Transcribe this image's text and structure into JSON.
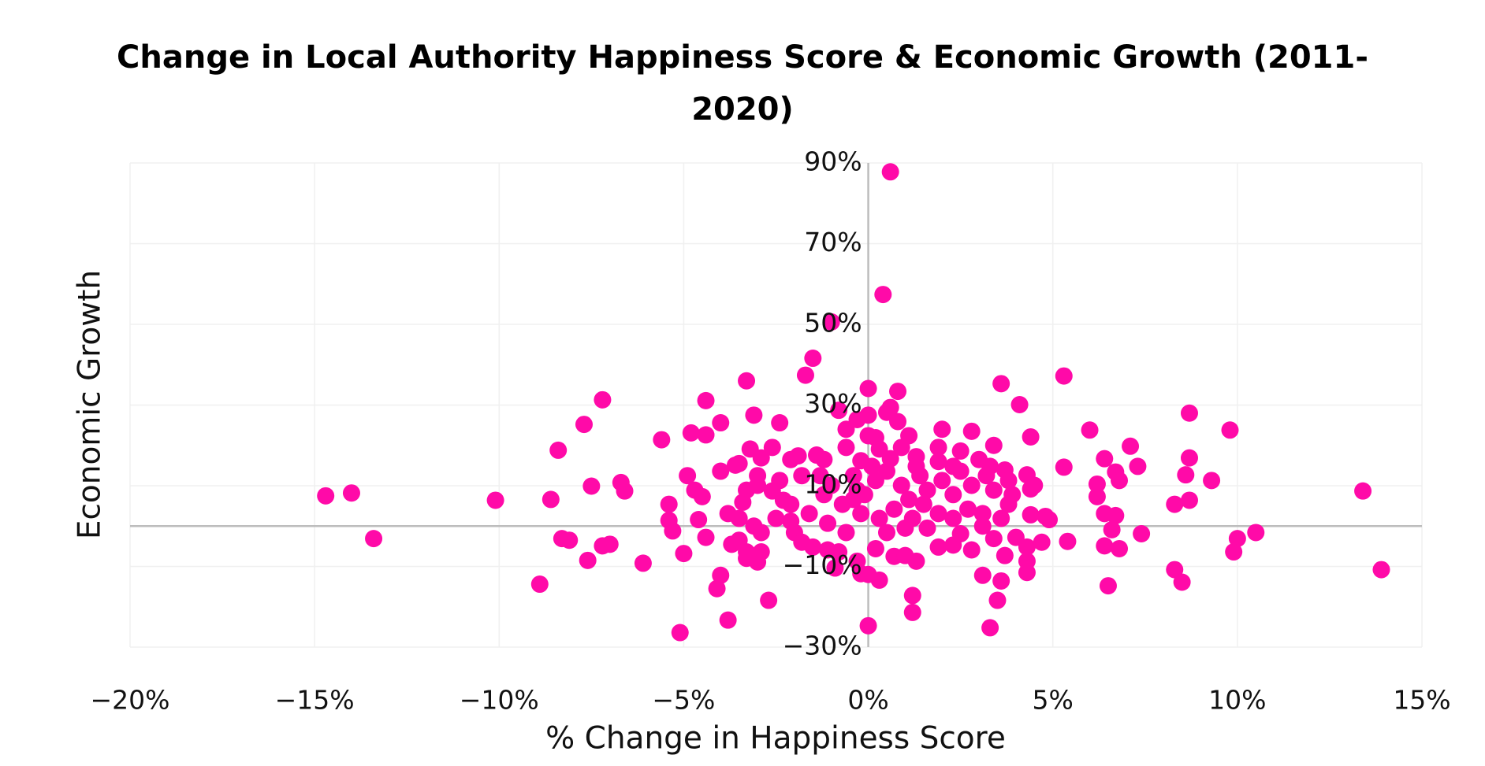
{
  "chart_data": {
    "type": "scatter",
    "title": "Change in Local Authority Happiness Score & Economic Growth (2011-2020)",
    "x_label": "% Change in Happiness Score",
    "y_label": "Economic Growth",
    "color": "#ff0aa8",
    "grid": true,
    "xlim": [
      -20,
      15
    ],
    "ylim": [
      -30,
      90
    ],
    "xticks": [
      {
        "value": -20,
        "label": "−20%"
      },
      {
        "value": -15,
        "label": "−15%"
      },
      {
        "value": -10,
        "label": "−10%"
      },
      {
        "value": -5,
        "label": "−5%"
      },
      {
        "value": 0,
        "label": "0%"
      },
      {
        "value": 5,
        "label": "5%"
      },
      {
        "value": 10,
        "label": "10%"
      },
      {
        "value": 15,
        "label": "15%"
      }
    ],
    "yticks": [
      {
        "value": -30,
        "label": "−30%"
      },
      {
        "value": -10,
        "label": "−10%"
      },
      {
        "value": 10,
        "label": "10%"
      },
      {
        "value": 30,
        "label": "30%"
      },
      {
        "value": 50,
        "label": "50%"
      },
      {
        "value": 70,
        "label": "70%"
      },
      {
        "value": 90,
        "label": "90%"
      }
    ],
    "x": [
      0.6,
      0.4,
      -1.0,
      -1.5,
      -1.7,
      -3.3,
      0.0,
      0.8,
      3.6,
      5.3,
      -7.2,
      -4.4,
      -0.8,
      4.1,
      8.7,
      0.6,
      0.5,
      0,
      -3.1,
      -7.7,
      -4.0,
      -2.4,
      -0.3,
      0.8,
      6.0,
      9.8,
      2.0,
      2.8,
      -4.8,
      -4.4,
      1.1,
      0,
      4.4,
      -5.6,
      -8.4,
      7.1,
      -3.2,
      -2.6,
      3.4,
      -0.6,
      0.3,
      1.9,
      2.5,
      6.4,
      8.7,
      -1.9,
      -1.4,
      -1.2,
      -2.1,
      -0.2,
      0.6,
      1.3,
      3.0,
      7.3,
      5.3,
      3.7,
      6.7,
      8.6,
      9.3,
      -4.0,
      -3.6,
      -3.5,
      -2.9,
      -3.0,
      -4.9,
      -6.7,
      -6.6,
      -7.5,
      -4.7,
      -4.5,
      4.3,
      4.5,
      4.4,
      6.2,
      6.8,
      6.2,
      8.3,
      8.7,
      13.4,
      -14.7,
      -14.0,
      -13.4,
      -10.1,
      -8.6,
      -5.4,
      -5.4,
      -5.3,
      -8.3,
      -8.1,
      -7.2,
      -7.0,
      -7.6,
      -6.1,
      -5.0,
      -8.9,
      -4.0,
      -4.1,
      -3.8,
      -5.1,
      -2.7,
      -4.4,
      -3.7,
      -3.5,
      -3.8,
      -4.6,
      -3.3,
      -2.9,
      -3.0,
      -3.3,
      -3.1,
      -3.4,
      -3.3,
      -3.0,
      -2.6,
      -2.3,
      -2.1,
      -2.0,
      -1.8,
      -1.5,
      -1.1,
      -0.8,
      -0.9,
      -0.3,
      -0.2,
      0,
      0.3,
      0,
      1.2,
      1.2,
      0.7,
      1.0,
      1.3,
      0.2,
      1.9,
      2.3,
      2.8,
      2.5,
      3.1,
      3.4,
      3.7,
      3.1,
      3.6,
      3.5,
      3.3,
      4.3,
      4.3,
      4.3,
      4.0,
      4.7,
      4.4,
      4.8,
      4.9,
      5.4,
      3.8,
      3.9,
      6.4,
      6.7,
      6.6,
      6.4,
      6.8,
      7.4,
      6.5,
      8.3,
      8.5,
      10.0,
      9.9,
      10.5,
      13.9,
      -0.4,
      -0.3,
      -0.1,
      0.2,
      0.5,
      0.9,
      1.1,
      1.4,
      1.6,
      2.0,
      2.3,
      2.5,
      2.8,
      3.2,
      3.4,
      2.7,
      1.9,
      1.2,
      0.7,
      0.3,
      -0.2,
      -0.7,
      -1.2,
      -1.6,
      -1.1,
      -0.6,
      0.5,
      1.0,
      1.6,
      2.3,
      3.1,
      3.6,
      -1.8,
      -1.3,
      -1.0,
      -2.4,
      -2.1,
      -2.5,
      -2.9,
      -3.5,
      2.3,
      1.3,
      1.9,
      3.8,
      3.3,
      0.9,
      0.2,
      -0.4,
      0.1,
      1.5,
      -0.6
    ],
    "values": [
      87.8,
      57.4,
      50.6,
      41.6,
      37.4,
      36,
      34.1,
      33.4,
      35.3,
      37.2,
      31.3,
      31.1,
      28.7,
      30.1,
      28,
      29.4,
      28.2,
      27.5,
      27.5,
      25.2,
      25.6,
      25.6,
      26.4,
      25.9,
      23.8,
      23.8,
      24.0,
      23.5,
      23.1,
      22.6,
      22.4,
      22.4,
      22.1,
      21.4,
      18.8,
      19.8,
      19.1,
      19.5,
      20,
      19.5,
      19.1,
      19.5,
      18.6,
      16.7,
      16.9,
      17.4,
      17.6,
      16.5,
      16.5,
      16.2,
      16.7,
      17.2,
      16.5,
      14.8,
      14.6,
      13.9,
      13.4,
      12.7,
      11.3,
      13.6,
      15.1,
      15.5,
      16.9,
      12.5,
      12.5,
      10.8,
      8.7,
      9.9,
      8.9,
      7.3,
      12.7,
      10.1,
      9.2,
      10.4,
      11.3,
      7.3,
      5.4,
      6.4,
      8.7,
      7.5,
      8.2,
      -3.1,
      6.4,
      6.6,
      5.4,
      1.4,
      -1.2,
      -3.1,
      -3.5,
      -4.9,
      -4.5,
      -8.5,
      -9.2,
      -6.8,
      -14.4,
      -12.2,
      -15.5,
      -23.3,
      -26.4,
      -18.4,
      -2.8,
      -4.5,
      -3.5,
      3.1,
      1.6,
      -6.4,
      -6.4,
      -8.9,
      -8.0,
      0,
      5.9,
      8.9,
      10.1,
      8.7,
      6.4,
      1.2,
      -1.6,
      -4.0,
      -5.2,
      -5.9,
      -6.4,
      -10.4,
      -8.7,
      -11.8,
      -12,
      -13.4,
      -24.7,
      -17.2,
      -21.4,
      -7.5,
      -7.3,
      -8.7,
      -5.6,
      -5.2,
      -4.7,
      -5.9,
      -1.9,
      0,
      -3.1,
      -7.3,
      -12.2,
      -13.6,
      -18.4,
      -25.2,
      -8.7,
      -11.5,
      -5.2,
      -2.8,
      -4.0,
      2.8,
      2.4,
      1.6,
      -3.8,
      5.4,
      7.8,
      3.1,
      2.6,
      -0.9,
      -4.9,
      -5.6,
      -1.9,
      -14.8,
      -10.8,
      -13.9,
      -3.1,
      -6.4,
      -1.6,
      -10.8,
      12.5,
      8.9,
      7.8,
      11.3,
      13.6,
      10.1,
      6.6,
      12.5,
      8.9,
      11.3,
      7.8,
      13.6,
      10.1,
      12.5,
      8.9,
      4.2,
      3.1,
      1.9,
      4.2,
      1.9,
      3.1,
      5.4,
      7.8,
      3.1,
      0.7,
      -1.6,
      -1.6,
      -0.5,
      -0.5,
      1.9,
      3.1,
      1.9,
      12.5,
      12.5,
      10.1,
      11.3,
      5.4,
      1.9,
      -1.6,
      1.9,
      14.8,
      14.8,
      16,
      11.3,
      14.8,
      19.5,
      21.9,
      6.6,
      14.8,
      5.4,
      24
    ]
  }
}
